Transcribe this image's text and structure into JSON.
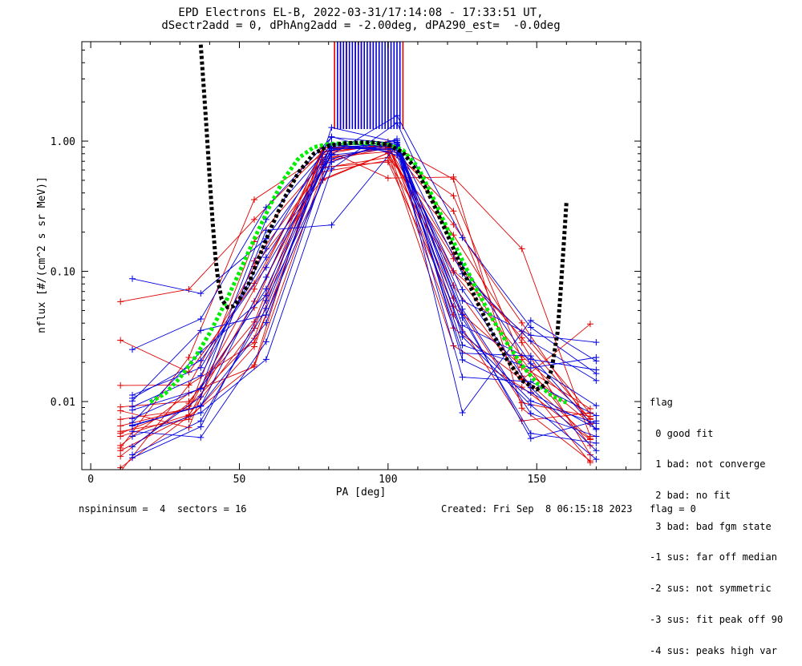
{
  "title": {
    "line1": "EPD Electrons EL-B, 2022-03-31/17:14:08 - 17:33:51 UT,",
    "line2": "dSectr2add = 0, dPhAng2add = -2.00deg, dPA290_est=  -0.0deg"
  },
  "footer": {
    "left": "nspininsum =  4  sectors = 16",
    "right": "Created: Fri Sep  8 06:15:18 2023   flag = 0"
  },
  "legend": {
    "title": "flag",
    "items": [
      " 0 good fit",
      " 1 bad: not converge",
      " 2 bad: no fit",
      " 3 bad: bad fgm state",
      "-1 sus: far off median",
      "-2 sus: not symmetric",
      "-3 sus: fit peak off 90",
      "-4 sus: peaks high var"
    ]
  },
  "chart_data": {
    "type": "line",
    "title": "EPD Electrons EL-B, 2022-03-31/17:14:08 - 17:33:51 UT,",
    "subtitle": "dSectr2add = 0, dPhAng2add = -2.00deg, dPA290_est=  -0.0deg",
    "xlabel": "PA [deg]",
    "ylabel": "nflux [#/(cm^2 s sr MeV)]",
    "xlim": [
      -3,
      185
    ],
    "ylim": [
      0.003,
      5.8
    ],
    "yscale": "log",
    "x_ticks": [
      0,
      50,
      100,
      150
    ],
    "x_tick_labels": [
      "0",
      "50",
      "100",
      "150"
    ],
    "y_ticks": [
      0.01,
      0.1,
      1.0
    ],
    "y_tick_labels": [
      "0.01",
      "0.10",
      "1.00"
    ],
    "colors": {
      "red": "#e00000",
      "blue": "#0000e0",
      "green": "#00ee00",
      "black": "#000000"
    },
    "series": [
      {
        "color": "red",
        "x": [
          10,
          33,
          55,
          78,
          100,
          122,
          145,
          168
        ],
        "y": [
          0.0059,
          0.0073,
          0.0264,
          0.66,
          0.96,
          0.51,
          0.0089,
          0.0035
        ]
      },
      {
        "color": "red",
        "x": [
          10,
          33,
          55,
          78,
          100,
          122,
          145,
          168
        ],
        "y": [
          0.0054,
          0.0079,
          0.0366,
          0.75,
          0.83,
          0.38,
          0.0211,
          0.0046
        ]
      },
      {
        "color": "red",
        "x": [
          10,
          33,
          55,
          78,
          100,
          122,
          145,
          168
        ],
        "y": [
          0.0065,
          0.0088,
          0.073,
          0.82,
          0.94,
          0.29,
          0.0157,
          0.0052
        ]
      },
      {
        "color": "red",
        "x": [
          10,
          33,
          55,
          78,
          100,
          122,
          145,
          168
        ],
        "y": [
          0.0038,
          0.0097,
          0.0526,
          0.89,
          0.9,
          0.135,
          0.0183,
          0.0068
        ]
      },
      {
        "color": "red",
        "x": [
          10,
          33,
          55,
          78,
          100,
          122,
          145,
          168
        ],
        "y": [
          0.0046,
          0.0116,
          0.0185,
          0.58,
          0.71,
          0.098,
          0.0224,
          0.0074
        ]
      },
      {
        "color": "red",
        "x": [
          10,
          33,
          55,
          78,
          100,
          122,
          145,
          168
        ],
        "y": [
          0.0029,
          0.0134,
          0.109,
          0.51,
          0.81,
          0.125,
          0.0308,
          0.0073
        ]
      },
      {
        "color": "red",
        "x": [
          10,
          33,
          55,
          78,
          100,
          122,
          145,
          168
        ],
        "y": [
          0.0073,
          0.0087,
          0.169,
          0.69,
          0.89,
          0.101,
          0.0345,
          0.0081
        ]
      },
      {
        "color": "red",
        "x": [
          10,
          33,
          55,
          78,
          100,
          122,
          145,
          168
        ],
        "y": [
          0.0091,
          0.01,
          0.0408,
          0.83,
          0.92,
          0.078,
          0.0149,
          0.0034
        ]
      },
      {
        "color": "red",
        "x": [
          10,
          33,
          55,
          78,
          100,
          122,
          145,
          168
        ],
        "y": [
          0.0042,
          0.0078,
          0.0589,
          0.63,
          0.69,
          0.0539,
          0.0187,
          0.0088
        ]
      },
      {
        "color": "red",
        "x": [
          10,
          33,
          55,
          78,
          100,
          122,
          145,
          168
        ],
        "y": [
          0.0133,
          0.0134,
          0.0284,
          0.5,
          0.81,
          0.0268,
          0.0129,
          0.0051
        ]
      },
      {
        "color": "red",
        "x": [
          10,
          33,
          55,
          78,
          100,
          122,
          145,
          168
        ],
        "y": [
          0.0296,
          0.0168,
          0.0811,
          0.72,
          0.91,
          0.0622,
          0.0098,
          0.0077
        ]
      },
      {
        "color": "red",
        "x": [
          10,
          33,
          55,
          78,
          100,
          122,
          145,
          168
        ],
        "y": [
          0.0044,
          0.0218,
          0.355,
          0.79,
          0.96,
          0.229,
          0.0402,
          0.0067
        ]
      },
      {
        "color": "red",
        "x": [
          10,
          33,
          55,
          78,
          100,
          122,
          145,
          168
        ],
        "y": [
          0.0585,
          0.0728,
          0.25,
          0.83,
          0.99,
          0.0463,
          0.0071,
          0.0082
        ]
      },
      {
        "color": "red",
        "x": [
          10,
          33,
          55,
          78,
          100,
          122,
          145,
          168
        ],
        "y": [
          0.0031,
          0.0077,
          0.0191,
          0.89,
          0.86,
          0.0367,
          0.0147,
          0.0394
        ]
      },
      {
        "color": "red",
        "x": [
          10,
          33,
          55,
          78,
          100,
          122,
          145,
          168
        ],
        "y": [
          0.0057,
          0.0092,
          0.0306,
          0.88,
          0.52,
          0.53,
          0.149,
          0.0054
        ]
      },
      {
        "color": "red",
        "x": [
          10,
          33,
          55,
          78,
          100,
          122,
          145,
          168
        ],
        "y": [
          0.0085,
          0.0063,
          0.12,
          0.62,
          0.75,
          0.19,
          0.0283,
          0.0039
        ]
      },
      {
        "color": "blue",
        "x": [
          14,
          37,
          59,
          81,
          103,
          125,
          148,
          170
        ],
        "y": [
          0.0054,
          0.0082,
          0.0211,
          0.61,
          1.38,
          0.112,
          0.0195,
          0.0093
        ]
      },
      {
        "color": "blue",
        "x": [
          14,
          37,
          59,
          81,
          103,
          125,
          148,
          170
        ],
        "y": [
          0.0086,
          0.0125,
          0.25,
          0.94,
          0.82,
          0.0723,
          0.0128,
          0.0042
        ]
      },
      {
        "color": "blue",
        "x": [
          14,
          37,
          59,
          81,
          103,
          125,
          148,
          170
        ],
        "y": [
          0.0106,
          0.0207,
          0.107,
          0.78,
          0.89,
          0.0467,
          0.0052,
          0.0071
        ]
      },
      {
        "color": "blue",
        "x": [
          14,
          37,
          59,
          81,
          103,
          125,
          148,
          170
        ],
        "y": [
          0.0251,
          0.0431,
          0.31,
          1.07,
          0.96,
          0.0315,
          0.0094,
          0.0036
        ]
      },
      {
        "color": "blue",
        "x": [
          14,
          37,
          59,
          81,
          103,
          125,
          148,
          170
        ],
        "y": [
          0.0037,
          0.0064,
          0.0597,
          0.69,
          1.04,
          0.0209,
          0.0117,
          0.0062
        ]
      },
      {
        "color": "blue",
        "x": [
          14,
          37,
          59,
          81,
          103,
          125,
          148,
          170
        ],
        "y": [
          0.0074,
          0.0126,
          0.0733,
          0.88,
          0.87,
          0.0154,
          0.0142,
          0.0078
        ]
      },
      {
        "color": "blue",
        "x": [
          14,
          37,
          59,
          81,
          103,
          125,
          148,
          170
        ],
        "y": [
          0.0065,
          0.0093,
          0.0403,
          1.27,
          0.98,
          0.0384,
          0.0211,
          0.0175
        ]
      },
      {
        "color": "blue",
        "x": [
          14,
          37,
          59,
          81,
          103,
          125,
          148,
          170
        ],
        "y": [
          0.0039,
          0.0071,
          0.0519,
          0.96,
          0.91,
          0.0595,
          0.0323,
          0.0285
        ]
      },
      {
        "color": "blue",
        "x": [
          14,
          37,
          59,
          81,
          103,
          125,
          148,
          170
        ],
        "y": [
          0.0059,
          0.0053,
          0.0288,
          0.85,
          1.01,
          0.0082,
          0.0419,
          0.0205
        ]
      },
      {
        "color": "blue",
        "x": [
          14,
          37,
          59,
          81,
          103,
          125,
          148,
          170
        ],
        "y": [
          0.0877,
          0.0676,
          0.178,
          0.9,
          0.94,
          0.0956,
          0.0291,
          0.0145
        ]
      },
      {
        "color": "blue",
        "x": [
          14,
          37,
          59,
          81,
          103,
          125,
          148,
          170
        ],
        "y": [
          0.0112,
          0.0182,
          0.128,
          0.79,
          1.57,
          0.181,
          0.0371,
          0.0164
        ]
      },
      {
        "color": "blue",
        "x": [
          14,
          37,
          59,
          81,
          103,
          125,
          148,
          170
        ],
        "y": [
          0.0066,
          0.0092,
          0.0901,
          0.94,
          0.85,
          0.0271,
          0.0181,
          0.0218
        ]
      },
      {
        "color": "blue",
        "x": [
          14,
          37,
          59,
          81,
          103,
          125,
          148,
          170
        ],
        "y": [
          0.0045,
          0.0109,
          0.207,
          0.227,
          0.93,
          0.0438,
          0.0057,
          0.0048
        ]
      },
      {
        "color": "blue",
        "x": [
          14,
          37,
          59,
          81,
          103,
          125,
          148,
          170
        ],
        "y": [
          0.0091,
          0.0158,
          0.149,
          1.08,
          0.78,
          0.0343,
          0.0101,
          0.0068
        ]
      },
      {
        "color": "blue",
        "x": [
          14,
          37,
          59,
          81,
          103,
          125,
          148,
          170
        ],
        "y": [
          0.0069,
          0.0241,
          0.0652,
          0.87,
          0.91,
          0.0235,
          0.0224,
          0.0061
        ]
      },
      {
        "color": "blue",
        "x": [
          14,
          37,
          59,
          81,
          103,
          125,
          148,
          170
        ],
        "y": [
          0.0101,
          0.0351,
          0.0462,
          0.73,
          0.98,
          0.0512,
          0.0081,
          0.0054
        ]
      },
      {
        "color": "green",
        "dashed": true,
        "x": [
          20,
          25,
          30,
          35,
          40,
          45,
          50,
          55,
          60,
          65,
          70,
          75,
          80,
          85,
          90,
          95,
          100,
          105,
          110,
          115,
          120,
          125,
          130,
          135,
          140,
          145,
          150,
          155,
          160
        ],
        "y": [
          0.0099,
          0.0115,
          0.0152,
          0.0217,
          0.0335,
          0.0558,
          0.0983,
          0.177,
          0.311,
          0.513,
          0.743,
          0.897,
          0.951,
          0.962,
          0.965,
          0.961,
          0.943,
          0.853,
          0.634,
          0.373,
          0.211,
          0.121,
          0.0709,
          0.0436,
          0.0281,
          0.0191,
          0.0139,
          0.0111,
          0.0098
        ]
      },
      {
        "color": "black",
        "dashed": true,
        "x": [
          37,
          38,
          39,
          40,
          41,
          42,
          43,
          44,
          46,
          48,
          50,
          53,
          56,
          60,
          65,
          70,
          75,
          80,
          85,
          90,
          95,
          100,
          105,
          110,
          115,
          120,
          125,
          130,
          135,
          140,
          145,
          150,
          153,
          155,
          157,
          158,
          159,
          160
        ],
        "y": [
          5.5,
          2.6,
          1.2,
          0.52,
          0.24,
          0.125,
          0.081,
          0.061,
          0.053,
          0.054,
          0.061,
          0.079,
          0.118,
          0.2,
          0.36,
          0.58,
          0.8,
          0.92,
          0.96,
          0.975,
          0.975,
          0.94,
          0.82,
          0.58,
          0.34,
          0.19,
          0.104,
          0.058,
          0.034,
          0.021,
          0.0145,
          0.0124,
          0.0135,
          0.0175,
          0.034,
          0.068,
          0.15,
          0.34
        ]
      }
    ],
    "saturated_bars": [
      {
        "color": "red",
        "x": [
          82,
          84,
          86,
          89,
          90,
          91,
          94,
          95,
          97,
          100,
          105
        ]
      },
      {
        "color": "blue",
        "x": [
          83,
          84,
          85,
          86,
          87,
          88,
          89,
          90,
          91,
          92,
          93,
          94,
          95,
          96,
          97,
          98,
          99,
          100,
          101,
          102,
          103,
          104
        ]
      }
    ]
  }
}
